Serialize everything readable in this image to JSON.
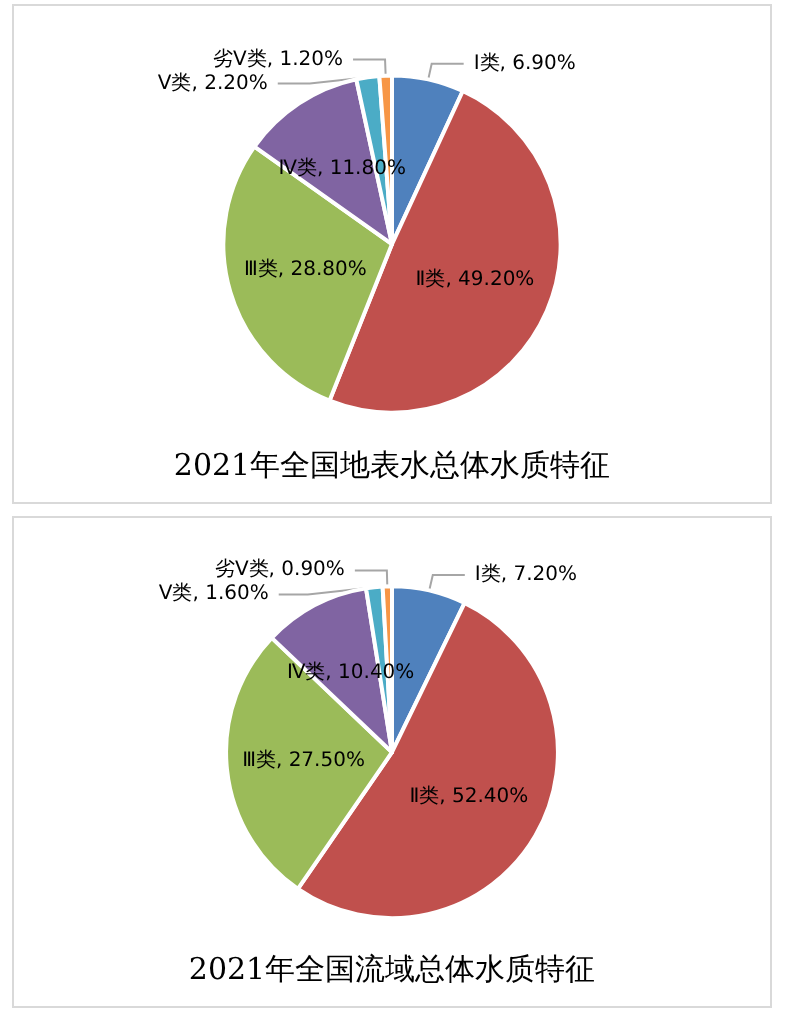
{
  "chart_data": [
    {
      "type": "pie",
      "title": "2021年全国地表水总体水质特征",
      "categories": [
        "Ⅰ类",
        "Ⅱ类",
        "Ⅲ类",
        "Ⅳ类",
        "Ⅴ类",
        "劣Ⅴ类"
      ],
      "values": [
        6.9,
        49.2,
        28.8,
        11.8,
        2.2,
        1.2
      ],
      "value_labels": [
        "6.90%",
        "49.20%",
        "28.80%",
        "11.80%",
        "2.20%",
        "1.20%"
      ],
      "colors": [
        "#4f81bd",
        "#c0504d",
        "#9bbb59",
        "#8064a2",
        "#4bacc6",
        "#f79646"
      ],
      "legend": false
    },
    {
      "type": "pie",
      "title": "2021年全国流域总体水质特征",
      "categories": [
        "Ⅰ类",
        "Ⅱ类",
        "Ⅲ类",
        "Ⅳ类",
        "Ⅴ类",
        "劣Ⅴ类"
      ],
      "values": [
        7.2,
        52.4,
        27.5,
        10.4,
        1.6,
        0.9
      ],
      "value_labels": [
        "7.20%",
        "52.40%",
        "27.50%",
        "10.40%",
        "1.60%",
        "0.90%"
      ],
      "colors": [
        "#4f81bd",
        "#c0504d",
        "#9bbb59",
        "#8064a2",
        "#4bacc6",
        "#f79646"
      ],
      "legend": false
    }
  ]
}
